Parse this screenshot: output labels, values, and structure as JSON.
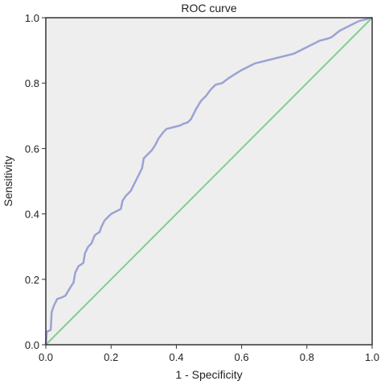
{
  "chart_data": {
    "type": "line",
    "title": "ROC curve",
    "xlabel": "1 - Specificity",
    "ylabel": "Sensitivity",
    "xlim": [
      0,
      1
    ],
    "ylim": [
      0,
      1
    ],
    "x_ticks": [
      "0.0",
      "0.2",
      "0.4",
      "0.6",
      "0.8",
      "1.0"
    ],
    "y_ticks": [
      "0.0",
      "0.2",
      "0.4",
      "0.6",
      "0.8",
      "1.0"
    ],
    "grid": false,
    "legend": "none",
    "colors": {
      "plot_background": "#efeeee",
      "roc_line": "#9aa3d4",
      "reference_line": "#7fcf8f",
      "frame": "#333333"
    },
    "series": [
      {
        "points": [
          [
            0.0,
            0.0
          ],
          [
            0.003,
            0.04
          ],
          [
            0.015,
            0.045
          ],
          [
            0.018,
            0.1
          ],
          [
            0.025,
            0.12
          ],
          [
            0.035,
            0.14
          ],
          [
            0.05,
            0.145
          ],
          [
            0.06,
            0.15
          ],
          [
            0.075,
            0.175
          ],
          [
            0.085,
            0.19
          ],
          [
            0.09,
            0.22
          ],
          [
            0.1,
            0.24
          ],
          [
            0.115,
            0.25
          ],
          [
            0.12,
            0.28
          ],
          [
            0.13,
            0.3
          ],
          [
            0.14,
            0.31
          ],
          [
            0.15,
            0.335
          ],
          [
            0.165,
            0.345
          ],
          [
            0.17,
            0.36
          ],
          [
            0.18,
            0.38
          ],
          [
            0.19,
            0.39
          ],
          [
            0.2,
            0.4
          ],
          [
            0.22,
            0.41
          ],
          [
            0.23,
            0.415
          ],
          [
            0.235,
            0.44
          ],
          [
            0.245,
            0.455
          ],
          [
            0.26,
            0.47
          ],
          [
            0.27,
            0.49
          ],
          [
            0.285,
            0.52
          ],
          [
            0.295,
            0.54
          ],
          [
            0.3,
            0.57
          ],
          [
            0.31,
            0.58
          ],
          [
            0.325,
            0.595
          ],
          [
            0.335,
            0.61
          ],
          [
            0.345,
            0.63
          ],
          [
            0.36,
            0.65
          ],
          [
            0.37,
            0.66
          ],
          [
            0.39,
            0.665
          ],
          [
            0.41,
            0.67
          ],
          [
            0.42,
            0.675
          ],
          [
            0.435,
            0.68
          ],
          [
            0.445,
            0.69
          ],
          [
            0.46,
            0.72
          ],
          [
            0.475,
            0.745
          ],
          [
            0.49,
            0.76
          ],
          [
            0.505,
            0.78
          ],
          [
            0.52,
            0.795
          ],
          [
            0.54,
            0.8
          ],
          [
            0.56,
            0.815
          ],
          [
            0.6,
            0.84
          ],
          [
            0.64,
            0.86
          ],
          [
            0.7,
            0.875
          ],
          [
            0.76,
            0.89
          ],
          [
            0.8,
            0.91
          ],
          [
            0.84,
            0.93
          ],
          [
            0.86,
            0.935
          ],
          [
            0.875,
            0.94
          ],
          [
            0.9,
            0.96
          ],
          [
            0.93,
            0.975
          ],
          [
            0.96,
            0.99
          ],
          [
            0.98,
            0.995
          ],
          [
            1.0,
            1.0
          ]
        ]
      },
      {
        "points": [
          [
            0.0,
            0.0
          ],
          [
            1.0,
            1.0
          ]
        ]
      }
    ]
  }
}
